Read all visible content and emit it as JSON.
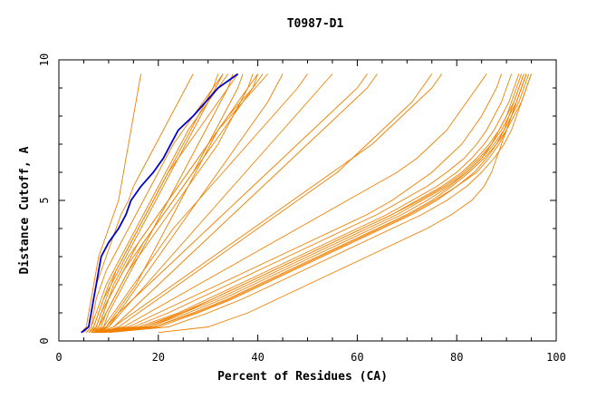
{
  "chart_data": {
    "type": "line",
    "title": "T0987-D1",
    "xlabel": "Percent of Residues (CA)",
    "ylabel": "Distance Cutoff, A",
    "xlim": [
      0,
      100
    ],
    "ylim": [
      0,
      10
    ],
    "x_ticks": [
      0,
      20,
      40,
      60,
      80,
      100
    ],
    "y_ticks": [
      0,
      5,
      10
    ],
    "x_tick_labels": [
      "0",
      "20",
      "40",
      "60",
      "80",
      "100"
    ],
    "y_tick_labels": [
      "0",
      "5",
      "10"
    ],
    "y_step": 0.5,
    "grid": false,
    "colors": {
      "other": "#f08000",
      "highlight": "#0000cc",
      "axis": "#000000"
    },
    "y_levels": [
      0.3,
      0.5,
      1.0,
      1.5,
      2.0,
      2.5,
      3.0,
      3.5,
      4.0,
      4.5,
      5.0,
      5.5,
      6.0,
      6.5,
      7.0,
      7.5,
      8.0,
      8.5,
      9.0,
      9.5
    ],
    "series": [
      {
        "group": "other",
        "x": [
          5.5,
          6.5,
          7.0,
          7.5,
          8.5,
          9.5,
          11.0,
          12.5,
          14.0,
          15.5,
          17.0,
          18.5,
          20.0,
          21.5,
          23.0,
          25.0,
          27.0,
          29.0,
          31.0,
          33.0
        ]
      },
      {
        "group": "other",
        "x": [
          5.0,
          6.0,
          6.5,
          7.0,
          7.5,
          8.5,
          9.5,
          10.5,
          11.5,
          12.5,
          14.0,
          15.0,
          16.5,
          18.0,
          19.5,
          21.0,
          22.5,
          24.0,
          25.5,
          27.0
        ]
      },
      {
        "group": "other",
        "x": [
          4.5,
          5.5,
          6.0,
          6.5,
          7.0,
          7.5,
          8.0,
          9.0,
          10.0,
          11.0,
          12.0,
          12.5,
          13.0,
          13.5,
          14.0,
          14.5,
          15.0,
          15.5,
          16.0,
          16.5
        ]
      },
      {
        "group": "other",
        "x": [
          6.0,
          7.0,
          8.0,
          9.0,
          10.5,
          12.0,
          13.5,
          15.0,
          16.5,
          18.0,
          19.5,
          21.0,
          22.5,
          24.0,
          25.5,
          27.0,
          28.5,
          30.0,
          31.5,
          33.0
        ]
      },
      {
        "group": "other",
        "x": [
          6.0,
          7.5,
          8.5,
          9.5,
          10.5,
          11.5,
          13.0,
          14.5,
          16.0,
          17.5,
          19.0,
          20.5,
          22.0,
          23.5,
          25.0,
          26.5,
          28.0,
          29.5,
          31.0,
          32.0
        ]
      },
      {
        "group": "other",
        "x": [
          6.5,
          8.0,
          9.0,
          10.0,
          11.5,
          13.0,
          15.0,
          17.0,
          19.0,
          21.0,
          23.0,
          25.0,
          27.0,
          28.5,
          30.0,
          31.5,
          33.0,
          34.5,
          36.0,
          37.0
        ]
      },
      {
        "group": "other",
        "x": [
          7.0,
          8.5,
          9.5,
          11.0,
          12.5,
          14.0,
          16.0,
          18.0,
          20.0,
          22.0,
          24.0,
          26.0,
          28.0,
          30.0,
          32.0,
          33.5,
          35.0,
          36.5,
          38.0,
          39.0
        ]
      },
      {
        "group": "other",
        "x": [
          5.5,
          6.5,
          7.5,
          8.5,
          9.5,
          11.0,
          12.5,
          14.0,
          15.5,
          17.0,
          18.5,
          20.0,
          21.5,
          23.0,
          24.5,
          26.0,
          28.0,
          30.0,
          32.0,
          34.0
        ]
      },
      {
        "group": "other",
        "x": [
          6.5,
          7.5,
          8.5,
          10.0,
          11.5,
          13.0,
          14.5,
          16.0,
          18.0,
          20.0,
          22.0,
          24.0,
          26.0,
          28.0,
          30.0,
          32.0,
          34.0,
          36.0,
          38.0,
          40.0
        ]
      },
      {
        "group": "other",
        "x": [
          7.0,
          8.0,
          9.0,
          10.0,
          11.0,
          12.5,
          14.0,
          16.0,
          18.0,
          20.0,
          22.0,
          24.0,
          26.0,
          28.0,
          30.0,
          32.0,
          34.5,
          37.0,
          39.5,
          42.0
        ]
      },
      {
        "group": "other",
        "x": [
          7.5,
          9.0,
          10.0,
          11.5,
          13.0,
          14.5,
          16.0,
          17.5,
          19.0,
          20.5,
          22.0,
          23.5,
          25.0,
          26.5,
          28.0,
          29.5,
          31.0,
          32.5,
          34.0,
          35.0
        ]
      },
      {
        "group": "other",
        "x": [
          6.0,
          7.0,
          8.0,
          9.0,
          10.0,
          11.5,
          13.0,
          14.5,
          16.0,
          17.5,
          19.0,
          20.5,
          22.0,
          24.0,
          26.0,
          28.0,
          30.0,
          32.0,
          34.0,
          36.0
        ]
      },
      {
        "group": "other",
        "x": [
          7.5,
          9.5,
          11.5,
          13.5,
          15.5,
          17.0,
          18.5,
          20.0,
          21.5,
          23.0,
          24.5,
          26.0,
          27.5,
          29.0,
          30.5,
          32.0,
          34.0,
          36.5,
          39.0,
          41.0
        ]
      },
      {
        "group": "other",
        "x": [
          6.5,
          8.0,
          9.5,
          11.0,
          12.5,
          14.0,
          15.5,
          17.0,
          19.0,
          21.0,
          23.0,
          25.0,
          27.0,
          29.0,
          31.0,
          33.0,
          35.0,
          37.0,
          39.0,
          40.0
        ]
      },
      {
        "group": "other",
        "x": [
          8.0,
          10.0,
          12.0,
          14.0,
          16.0,
          18.0,
          20.0,
          22.0,
          24.0,
          26.0,
          28.0,
          30.0,
          32.0,
          34.0,
          36.0,
          38.0,
          40.0,
          42.0,
          43.5,
          45.0
        ]
      },
      {
        "group": "other",
        "x": [
          7.0,
          9.0,
          11.0,
          13.0,
          15.0,
          17.0,
          19.0,
          21.0,
          23.0,
          25.5,
          28.0,
          30.5,
          33.0,
          35.5,
          38.0,
          40.5,
          43.0,
          45.5,
          48.0,
          50.0
        ]
      },
      {
        "group": "other",
        "x": [
          7.5,
          10.0,
          12.5,
          15.0,
          17.5,
          20.0,
          22.5,
          25.0,
          27.5,
          30.0,
          32.5,
          35.0,
          37.5,
          40.0,
          42.5,
          45.0,
          47.5,
          50.0,
          52.5,
          55.0
        ]
      },
      {
        "group": "other",
        "x": [
          8.0,
          11.0,
          14.0,
          17.0,
          20.0,
          23.0,
          26.0,
          29.0,
          32.0,
          35.0,
          38.0,
          41.0,
          44.0,
          47.0,
          50.0,
          53.0,
          56.0,
          59.0,
          62.0,
          64.0
        ]
      },
      {
        "group": "other",
        "x": [
          7.0,
          9.5,
          12.0,
          15.0,
          18.0,
          21.0,
          24.0,
          27.0,
          30.0,
          33.0,
          36.0,
          39.0,
          42.0,
          45.0,
          48.0,
          51.0,
          54.0,
          57.0,
          60.0,
          62.0
        ]
      },
      {
        "group": "other",
        "x": [
          8.5,
          12.0,
          16.0,
          20.0,
          24.0,
          28.0,
          32.0,
          36.0,
          40.0,
          44.0,
          48.0,
          52.0,
          56.0,
          59.0,
          62.0,
          65.0,
          68.0,
          71.0,
          73.0,
          75.0
        ]
      },
      {
        "group": "other",
        "x": [
          8.0,
          11.0,
          15.0,
          19.0,
          23.0,
          27.0,
          31.0,
          35.0,
          39.0,
          43.0,
          47.0,
          51.0,
          55.0,
          59.0,
          63.0,
          66.0,
          69.0,
          72.0,
          75.0,
          77.0
        ]
      },
      {
        "group": "other",
        "x": [
          7.0,
          13.0,
          18.0,
          23.0,
          28.0,
          33.0,
          38.0,
          43.0,
          48.0,
          53.0,
          58.0,
          63.0,
          68.0,
          72.0,
          75.0,
          78.0,
          80.0,
          82.0,
          84.0,
          86.0
        ]
      },
      {
        "group": "other",
        "x": [
          6.5,
          14.0,
          20.0,
          26.0,
          32.0,
          38.0,
          44.0,
          50.0,
          56.0,
          62.0,
          67.0,
          71.0,
          75.0,
          78.0,
          81.0,
          83.0,
          85.0,
          86.5,
          88.0,
          89.0
        ]
      },
      {
        "group": "other",
        "x": [
          7.5,
          15.0,
          22.0,
          28.0,
          34.0,
          40.0,
          46.0,
          52.0,
          58.0,
          64.0,
          69.0,
          74.0,
          78.0,
          81.5,
          84.0,
          86.0,
          87.5,
          89.0,
          90.0,
          91.0
        ]
      },
      {
        "group": "other",
        "x": [
          7.0,
          16.0,
          24.0,
          30.0,
          36.0,
          42.0,
          48.0,
          54.0,
          60.0,
          66.0,
          71.0,
          76.0,
          80.0,
          83.0,
          85.5,
          87.5,
          89.0,
          90.5,
          91.5,
          92.5
        ]
      },
      {
        "group": "other",
        "x": [
          8.0,
          17.0,
          25.0,
          31.0,
          37.0,
          43.0,
          49.0,
          55.0,
          61.0,
          67.0,
          72.0,
          77.0,
          81.0,
          84.0,
          86.5,
          88.5,
          90.0,
          91.5,
          92.5,
          93.5
        ]
      },
      {
        "group": "other",
        "x": [
          8.5,
          18.0,
          26.0,
          33.0,
          39.0,
          45.0,
          51.0,
          57.0,
          63.0,
          69.0,
          74.0,
          78.5,
          82.0,
          85.0,
          87.5,
          89.5,
          91.0,
          92.5,
          93.5,
          94.5
        ]
      },
      {
        "group": "other",
        "x": [
          9.0,
          19.0,
          27.0,
          34.0,
          40.0,
          46.0,
          52.0,
          58.0,
          64.0,
          70.0,
          75.0,
          79.0,
          82.5,
          85.5,
          88.0,
          90.0,
          91.5,
          93.0,
          94.0,
          95.0
        ]
      },
      {
        "group": "other",
        "x": [
          7.5,
          17.0,
          24.5,
          31.0,
          37.0,
          43.0,
          49.0,
          55.0,
          61.0,
          67.0,
          72.5,
          77.5,
          81.5,
          84.5,
          87.0,
          89.0,
          90.5,
          92.0,
          93.0,
          94.0
        ]
      },
      {
        "group": "other",
        "x": [
          8.0,
          18.0,
          25.0,
          32.0,
          38.0,
          44.0,
          50.0,
          56.0,
          62.0,
          68.0,
          73.0,
          78.0,
          82.0,
          85.0,
          87.0,
          88.5,
          90.0,
          91.0,
          92.0,
          93.0
        ]
      },
      {
        "group": "other",
        "x": [
          9.0,
          20.0,
          28.0,
          35.0,
          41.0,
          47.0,
          53.0,
          59.0,
          65.0,
          71.0,
          76.0,
          80.0,
          83.5,
          86.0,
          88.0,
          89.5,
          90.5,
          91.5,
          92.5,
          93.5
        ]
      },
      {
        "group": "other",
        "x": [
          8.5,
          19.0,
          27.5,
          34.5,
          40.5,
          46.5,
          52.5,
          58.5,
          64.5,
          70.5,
          75.5,
          80.0,
          84.0,
          86.5,
          88.5,
          90.0,
          91.0,
          92.0,
          93.0,
          94.0
        ]
      },
      {
        "group": "other",
        "x": [
          10.0,
          22.0,
          30.0,
          37.0,
          43.0,
          49.0,
          55.0,
          61.0,
          67.0,
          73.0,
          78.0,
          82.0,
          85.0,
          87.5,
          89.5,
          91.0,
          92.0,
          93.0,
          94.0,
          95.0
        ]
      },
      {
        "group": "other",
        "x": [
          20.0,
          30.0,
          38.0,
          44.0,
          50.0,
          56.0,
          62.0,
          68.0,
          74.0,
          79.0,
          83.0,
          85.5,
          87.0,
          88.0,
          89.0,
          90.0,
          91.0,
          92.0,
          93.0,
          94.0
        ]
      }
    ],
    "highlight": {
      "group": "highlight",
      "x": [
        4.5,
        6.0,
        6.5,
        7.0,
        7.5,
        8.0,
        8.5,
        10.0,
        12.0,
        13.5,
        14.5,
        16.5,
        19.0,
        21.0,
        22.5,
        24.0,
        27.0,
        29.5,
        32.0,
        36.0
      ],
      "y": [
        0.3,
        0.5,
        1.0,
        1.5,
        2.0,
        2.5,
        3.0,
        3.5,
        4.0,
        4.5,
        5.0,
        5.5,
        6.0,
        6.5,
        7.0,
        7.5,
        8.0,
        8.5,
        9.0,
        9.5
      ]
    }
  }
}
